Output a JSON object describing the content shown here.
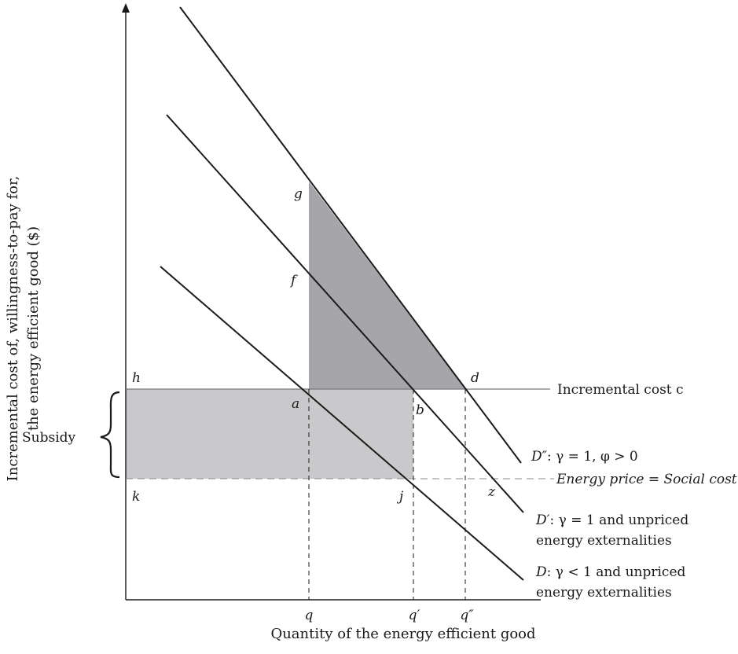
{
  "axes": {
    "x_label": "Quantity of the energy efficient good",
    "y_label_line1": "Incremental cost of, willingness-to-pay for,",
    "y_label_line2": "the energy efficient good ($)"
  },
  "quantities": {
    "q": "q",
    "q_prime": "q′",
    "q_double_prime": "q″"
  },
  "points": {
    "g": "g",
    "f": "f",
    "h": "h",
    "d": "d",
    "a": "a",
    "b": "b",
    "k": "k",
    "j": "j",
    "z": "z"
  },
  "lines": {
    "incremental_cost": "Incremental cost c",
    "energy_price": "Energy price = Social cost",
    "subsidy": "Subsidy"
  },
  "curves": {
    "d_double_prime": {
      "name": "D″",
      "condition": ": γ = 1, φ > 0"
    },
    "d_prime": {
      "name": "D′",
      "condition_line1": ": γ = 1 and unpriced",
      "condition_line2": "energy externalities"
    },
    "d": {
      "name": "D",
      "condition_line1": ": γ < 1 and unpriced",
      "condition_line2": "energy externalities"
    }
  },
  "colors": {
    "dark_triangle": "#a6a6aa",
    "subsidy_rect": "#c9c9cb",
    "ink": "#1a1a1a"
  }
}
